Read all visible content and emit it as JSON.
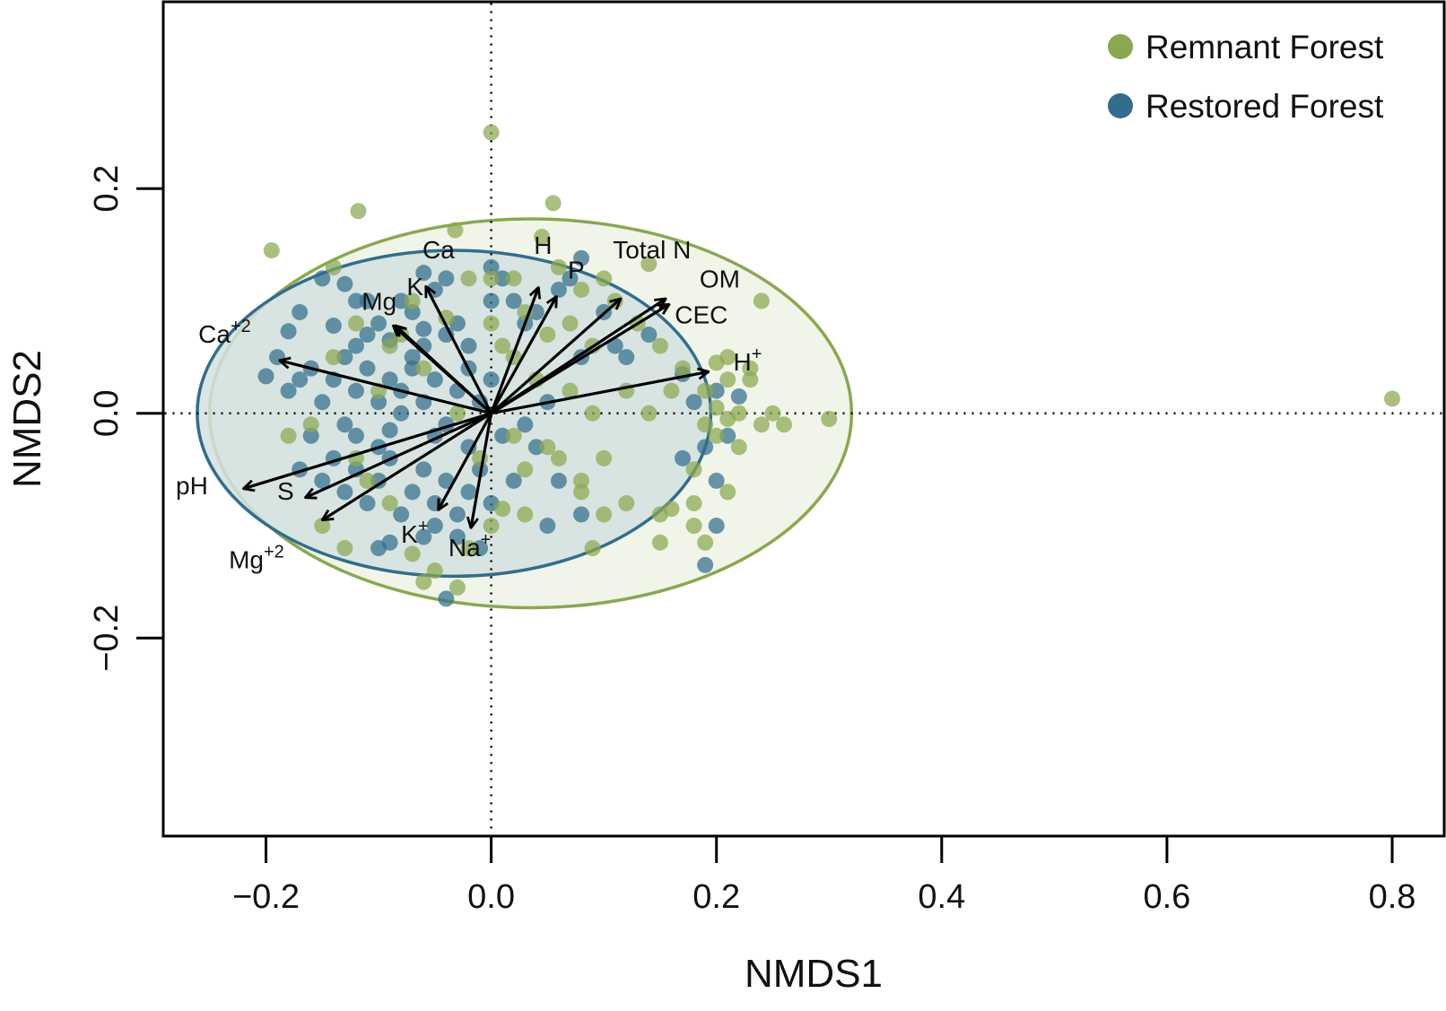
{
  "chart_data": {
    "type": "scatter",
    "xlabel": "NMDS1",
    "ylabel": "NMDS2",
    "xlim": [
      -0.29,
      0.845
    ],
    "ylim": [
      -0.375,
      0.365
    ],
    "x_ticks": [
      "−0.2",
      "0.0",
      "0.2",
      "0.4",
      "0.6",
      "0.8"
    ],
    "x_tick_values": [
      -0.2,
      0.0,
      0.2,
      0.4,
      0.6,
      0.8
    ],
    "y_ticks": [
      "−0.2",
      "0.0",
      "0.2"
    ],
    "y_tick_values": [
      -0.2,
      0.0,
      0.2
    ],
    "reference_lines": {
      "x": 0,
      "y": 0,
      "style": "dotted"
    },
    "legend": {
      "position": "top-right",
      "entries": [
        {
          "label": "Remnant Forest",
          "color": "#8aa84f"
        },
        {
          "label": "Restored Forest",
          "color": "#326d8c"
        }
      ]
    },
    "ellipses": [
      {
        "group": "Remnant Forest",
        "center": [
          0.035,
          0.0
        ],
        "radii": [
          0.285,
          0.173
        ],
        "fill": "#eef2e4",
        "stroke": "#8aa84f"
      },
      {
        "group": "Restored Forest",
        "center": [
          -0.033,
          0.0
        ],
        "radii": [
          0.228,
          0.145
        ],
        "fill": "#d4e0df",
        "stroke": "#326d8c"
      }
    ],
    "vectors": [
      {
        "label": "Ca",
        "sup": "",
        "x": -0.058,
        "y": 0.113,
        "lx": -0.061,
        "ly": 0.138
      },
      {
        "label": "K",
        "sup": "",
        "x": -0.087,
        "y": 0.078,
        "lx": -0.075,
        "ly": 0.105
      },
      {
        "label": "Mg",
        "sup": "",
        "x": -0.085,
        "y": 0.078,
        "lx": -0.115,
        "ly": 0.092
      },
      {
        "label": "Ca",
        "sup": "+2",
        "x": -0.188,
        "y": 0.047,
        "lx": -0.26,
        "ly": 0.063
      },
      {
        "label": "pH",
        "sup": "",
        "x": -0.22,
        "y": -0.067,
        "lx": -0.28,
        "ly": -0.072
      },
      {
        "label": "S",
        "sup": "",
        "x": -0.165,
        "y": -0.075,
        "lx": -0.19,
        "ly": -0.077
      },
      {
        "label": "Mg",
        "sup": "+2",
        "x": -0.15,
        "y": -0.095,
        "lx": -0.233,
        "ly": -0.138
      },
      {
        "label": "K",
        "sup": "+",
        "x": -0.047,
        "y": -0.086,
        "lx": -0.08,
        "ly": -0.115
      },
      {
        "label": "Na",
        "sup": "+",
        "x": -0.018,
        "y": -0.102,
        "lx": -0.038,
        "ly": -0.127
      },
      {
        "label": "H",
        "sup": "",
        "x": 0.042,
        "y": 0.112,
        "lx": 0.038,
        "ly": 0.142
      },
      {
        "label": "P",
        "sup": "",
        "x": 0.058,
        "y": 0.104,
        "lx": 0.068,
        "ly": 0.12
      },
      {
        "label": "Total N",
        "sup": "",
        "x": 0.115,
        "y": 0.102,
        "lx": 0.108,
        "ly": 0.138
      },
      {
        "label": "OM",
        "sup": "",
        "x": 0.155,
        "y": 0.102,
        "lx": 0.185,
        "ly": 0.112
      },
      {
        "label": "CEC",
        "sup": "",
        "x": 0.158,
        "y": 0.097,
        "lx": 0.163,
        "ly": 0.08
      },
      {
        "label": "H",
        "sup": "+",
        "x": 0.193,
        "y": 0.037,
        "lx": 0.215,
        "ly": 0.038
      }
    ],
    "series": [
      {
        "name": "Restored Forest",
        "color": "#326d8c",
        "points": [
          [
            -0.18,
            0.073
          ],
          [
            -0.2,
            0.033
          ],
          [
            -0.19,
            0.05
          ],
          [
            -0.17,
            0.03
          ],
          [
            -0.15,
            0.12
          ],
          [
            -0.13,
            0.115
          ],
          [
            -0.11,
            0.1
          ],
          [
            -0.14,
            0.078
          ],
          [
            -0.12,
            0.06
          ],
          [
            -0.1,
            0.08
          ],
          [
            -0.09,
            0.065
          ],
          [
            -0.08,
            0.1
          ],
          [
            -0.06,
            0.125
          ],
          [
            -0.05,
            0.11
          ],
          [
            -0.04,
            0.12
          ],
          [
            -0.07,
            0.09
          ],
          [
            -0.06,
            0.075
          ],
          [
            -0.04,
            0.07
          ],
          [
            -0.03,
            0.08
          ],
          [
            -0.02,
            0.06
          ],
          [
            -0.16,
            0.04
          ],
          [
            -0.14,
            0.03
          ],
          [
            -0.15,
            0.01
          ],
          [
            -0.13,
            -0.01
          ],
          [
            -0.12,
            0.02
          ],
          [
            -0.11,
            0.04
          ],
          [
            -0.1,
            0.01
          ],
          [
            -0.09,
            -0.015
          ],
          [
            -0.08,
            0.02
          ],
          [
            -0.07,
            0.04
          ],
          [
            -0.06,
            0.01
          ],
          [
            -0.05,
            0.03
          ],
          [
            -0.04,
            -0.01
          ],
          [
            -0.03,
            0.02
          ],
          [
            -0.02,
            0.04
          ],
          [
            -0.01,
            0.01
          ],
          [
            0.0,
            0.03
          ],
          [
            0.01,
            -0.02
          ],
          [
            -0.17,
            -0.05
          ],
          [
            -0.15,
            -0.06
          ],
          [
            -0.14,
            -0.04
          ],
          [
            -0.13,
            -0.07
          ],
          [
            -0.12,
            -0.05
          ],
          [
            -0.11,
            -0.08
          ],
          [
            -0.1,
            -0.06
          ],
          [
            -0.09,
            -0.04
          ],
          [
            -0.08,
            -0.09
          ],
          [
            -0.07,
            -0.07
          ],
          [
            -0.06,
            -0.05
          ],
          [
            -0.05,
            -0.08
          ],
          [
            -0.04,
            -0.06
          ],
          [
            -0.03,
            -0.09
          ],
          [
            -0.02,
            -0.07
          ],
          [
            -0.01,
            -0.05
          ],
          [
            0.0,
            -0.08
          ],
          [
            -0.1,
            -0.12
          ],
          [
            -0.09,
            -0.115
          ],
          [
            -0.05,
            -0.1
          ],
          [
            -0.03,
            -0.11
          ],
          [
            -0.01,
            -0.12
          ],
          [
            -0.04,
            -0.165
          ],
          [
            0.01,
            0.12
          ],
          [
            0.02,
            0.1
          ],
          [
            0.03,
            0.08
          ],
          [
            0.04,
            0.09
          ],
          [
            0.06,
            0.11
          ],
          [
            0.07,
            0.12
          ],
          [
            0.08,
            0.138
          ],
          [
            0.1,
            0.09
          ],
          [
            0.12,
            0.05
          ],
          [
            0.14,
            0.07
          ],
          [
            0.03,
            -0.01
          ],
          [
            0.05,
            0.01
          ],
          [
            0.04,
            -0.03
          ],
          [
            0.06,
            -0.06
          ],
          [
            0.08,
            -0.09
          ],
          [
            0.05,
            -0.1
          ],
          [
            0.02,
            -0.06
          ],
          [
            0.17,
            0.035
          ],
          [
            0.18,
            0.01
          ],
          [
            0.2,
            0.02
          ],
          [
            0.22,
            0.015
          ],
          [
            0.21,
            -0.02
          ],
          [
            0.19,
            -0.03
          ],
          [
            0.17,
            -0.04
          ],
          [
            0.2,
            -0.06
          ],
          [
            0.2,
            -0.1
          ],
          [
            0.19,
            -0.135
          ],
          [
            -0.17,
            0.09
          ],
          [
            -0.18,
            0.02
          ],
          [
            -0.16,
            -0.02
          ],
          [
            -0.12,
            0.1
          ],
          [
            -0.11,
            0.07
          ],
          [
            -0.07,
            0.05
          ],
          [
            -0.06,
            0.06
          ],
          [
            -0.05,
            -0.02
          ],
          [
            -0.08,
            0.0
          ],
          [
            -0.09,
            0.03
          ],
          [
            -0.1,
            -0.03
          ],
          [
            -0.12,
            -0.02
          ],
          [
            -0.13,
            0.05
          ],
          [
            -0.02,
            -0.03
          ],
          [
            -0.06,
            -0.11
          ],
          [
            0.0,
            0.1
          ],
          [
            0.0,
            0.13
          ],
          [
            0.08,
            0.05
          ],
          [
            0.11,
            0.06
          ]
        ]
      },
      {
        "name": "Remnant Forest",
        "color": "#8aa84f",
        "points": [
          [
            0.0,
            0.25
          ],
          [
            0.8,
            0.013
          ],
          [
            0.055,
            0.187
          ],
          [
            -0.195,
            0.145
          ],
          [
            -0.118,
            0.18
          ],
          [
            -0.14,
            0.13
          ],
          [
            -0.032,
            0.163
          ],
          [
            0.045,
            0.157
          ],
          [
            0.1,
            0.12
          ],
          [
            0.14,
            0.133
          ],
          [
            0.06,
            0.13
          ],
          [
            0.08,
            0.11
          ],
          [
            0.11,
            0.1
          ],
          [
            0.13,
            0.08
          ],
          [
            0.15,
            0.06
          ],
          [
            0.17,
            0.04
          ],
          [
            0.19,
            0.02
          ],
          [
            0.21,
            0.03
          ],
          [
            0.22,
            0.0
          ],
          [
            0.24,
            -0.01
          ],
          [
            0.26,
            -0.01
          ],
          [
            0.3,
            -0.005
          ],
          [
            0.23,
            0.04
          ],
          [
            0.21,
            0.05
          ],
          [
            0.2,
            -0.02
          ],
          [
            0.22,
            -0.03
          ],
          [
            0.18,
            -0.05
          ],
          [
            0.21,
            -0.07
          ],
          [
            0.18,
            -0.08
          ],
          [
            0.16,
            -0.085
          ],
          [
            0.19,
            -0.115
          ],
          [
            0.15,
            -0.115
          ],
          [
            0.12,
            -0.08
          ],
          [
            0.1,
            -0.09
          ],
          [
            0.08,
            -0.06
          ],
          [
            0.05,
            -0.03
          ],
          [
            0.03,
            -0.05
          ],
          [
            0.0,
            -0.1
          ],
          [
            -0.02,
            -0.12
          ],
          [
            -0.05,
            -0.14
          ],
          [
            -0.07,
            -0.125
          ],
          [
            -0.13,
            -0.12
          ],
          [
            -0.15,
            -0.1
          ],
          [
            -0.12,
            -0.04
          ],
          [
            -0.1,
            0.02
          ],
          [
            -0.09,
            0.06
          ],
          [
            -0.07,
            0.1
          ],
          [
            -0.04,
            0.085
          ],
          [
            0.0,
            0.08
          ],
          [
            0.02,
            0.05
          ],
          [
            0.04,
            0.03
          ],
          [
            0.07,
            0.02
          ],
          [
            0.09,
            0.0
          ],
          [
            0.1,
            -0.04
          ],
          [
            0.08,
            -0.07
          ],
          [
            0.06,
            -0.04
          ],
          [
            0.02,
            -0.02
          ],
          [
            0.01,
            0.06
          ],
          [
            -0.12,
            0.08
          ],
          [
            -0.08,
            0.07
          ],
          [
            -0.06,
            0.04
          ],
          [
            -0.03,
            0.0
          ],
          [
            -0.01,
            -0.04
          ],
          [
            0.03,
            0.09
          ],
          [
            0.05,
            0.07
          ],
          [
            0.0,
            0.12
          ],
          [
            0.02,
            0.12
          ],
          [
            0.16,
            0.02
          ],
          [
            0.24,
            0.1
          ],
          [
            0.23,
            0.03
          ],
          [
            0.2,
            0.045
          ],
          [
            0.25,
            0.0
          ],
          [
            0.14,
            0.0
          ],
          [
            0.12,
            0.02
          ],
          [
            0.09,
            0.06
          ],
          [
            0.07,
            0.08
          ],
          [
            -0.02,
            0.12
          ],
          [
            -0.14,
            0.05
          ],
          [
            -0.16,
            -0.01
          ],
          [
            -0.18,
            -0.02
          ],
          [
            -0.11,
            -0.06
          ],
          [
            -0.09,
            -0.08
          ],
          [
            -0.06,
            -0.15
          ],
          [
            -0.03,
            -0.155
          ],
          [
            0.09,
            -0.12
          ],
          [
            0.18,
            -0.1
          ],
          [
            0.15,
            -0.09
          ],
          [
            0.03,
            -0.09
          ],
          [
            0.01,
            -0.085
          ],
          [
            0.2,
            0.005
          ],
          [
            0.19,
            -0.01
          ],
          [
            0.21,
            -0.005
          ]
        ]
      }
    ]
  }
}
